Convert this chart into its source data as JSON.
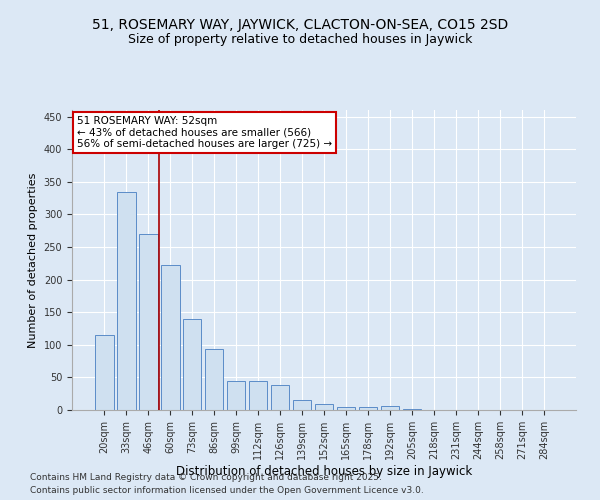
{
  "title": "51, ROSEMARY WAY, JAYWICK, CLACTON-ON-SEA, CO15 2SD",
  "subtitle": "Size of property relative to detached houses in Jaywick",
  "xlabel": "Distribution of detached houses by size in Jaywick",
  "ylabel": "Number of detached properties",
  "categories": [
    "20sqm",
    "33sqm",
    "46sqm",
    "60sqm",
    "73sqm",
    "86sqm",
    "99sqm",
    "112sqm",
    "126sqm",
    "139sqm",
    "152sqm",
    "165sqm",
    "178sqm",
    "192sqm",
    "205sqm",
    "218sqm",
    "231sqm",
    "244sqm",
    "258sqm",
    "271sqm",
    "284sqm"
  ],
  "values": [
    115,
    335,
    270,
    222,
    139,
    93,
    44,
    44,
    39,
    15,
    9,
    5,
    5,
    6,
    1,
    0,
    0,
    0,
    0,
    0,
    0
  ],
  "bar_color": "#cfe0f0",
  "bar_edge_color": "#5b8cc8",
  "ylim": [
    0,
    460
  ],
  "yticks": [
    0,
    50,
    100,
    150,
    200,
    250,
    300,
    350,
    400,
    450
  ],
  "annotation_text": "51 ROSEMARY WAY: 52sqm\n← 43% of detached houses are smaller (566)\n56% of semi-detached houses are larger (725) →",
  "vline_x": 2.5,
  "vline_color": "#aa0000",
  "annotation_box_color": "#cc0000",
  "background_color": "#dce8f5",
  "plot_bg_color": "#dce8f5",
  "footer_line1": "Contains HM Land Registry data © Crown copyright and database right 2025.",
  "footer_line2": "Contains public sector information licensed under the Open Government Licence v3.0.",
  "title_fontsize": 10,
  "subtitle_fontsize": 9,
  "xlabel_fontsize": 8.5,
  "ylabel_fontsize": 8,
  "tick_fontsize": 7,
  "annotation_fontsize": 7.5,
  "footer_fontsize": 6.5
}
